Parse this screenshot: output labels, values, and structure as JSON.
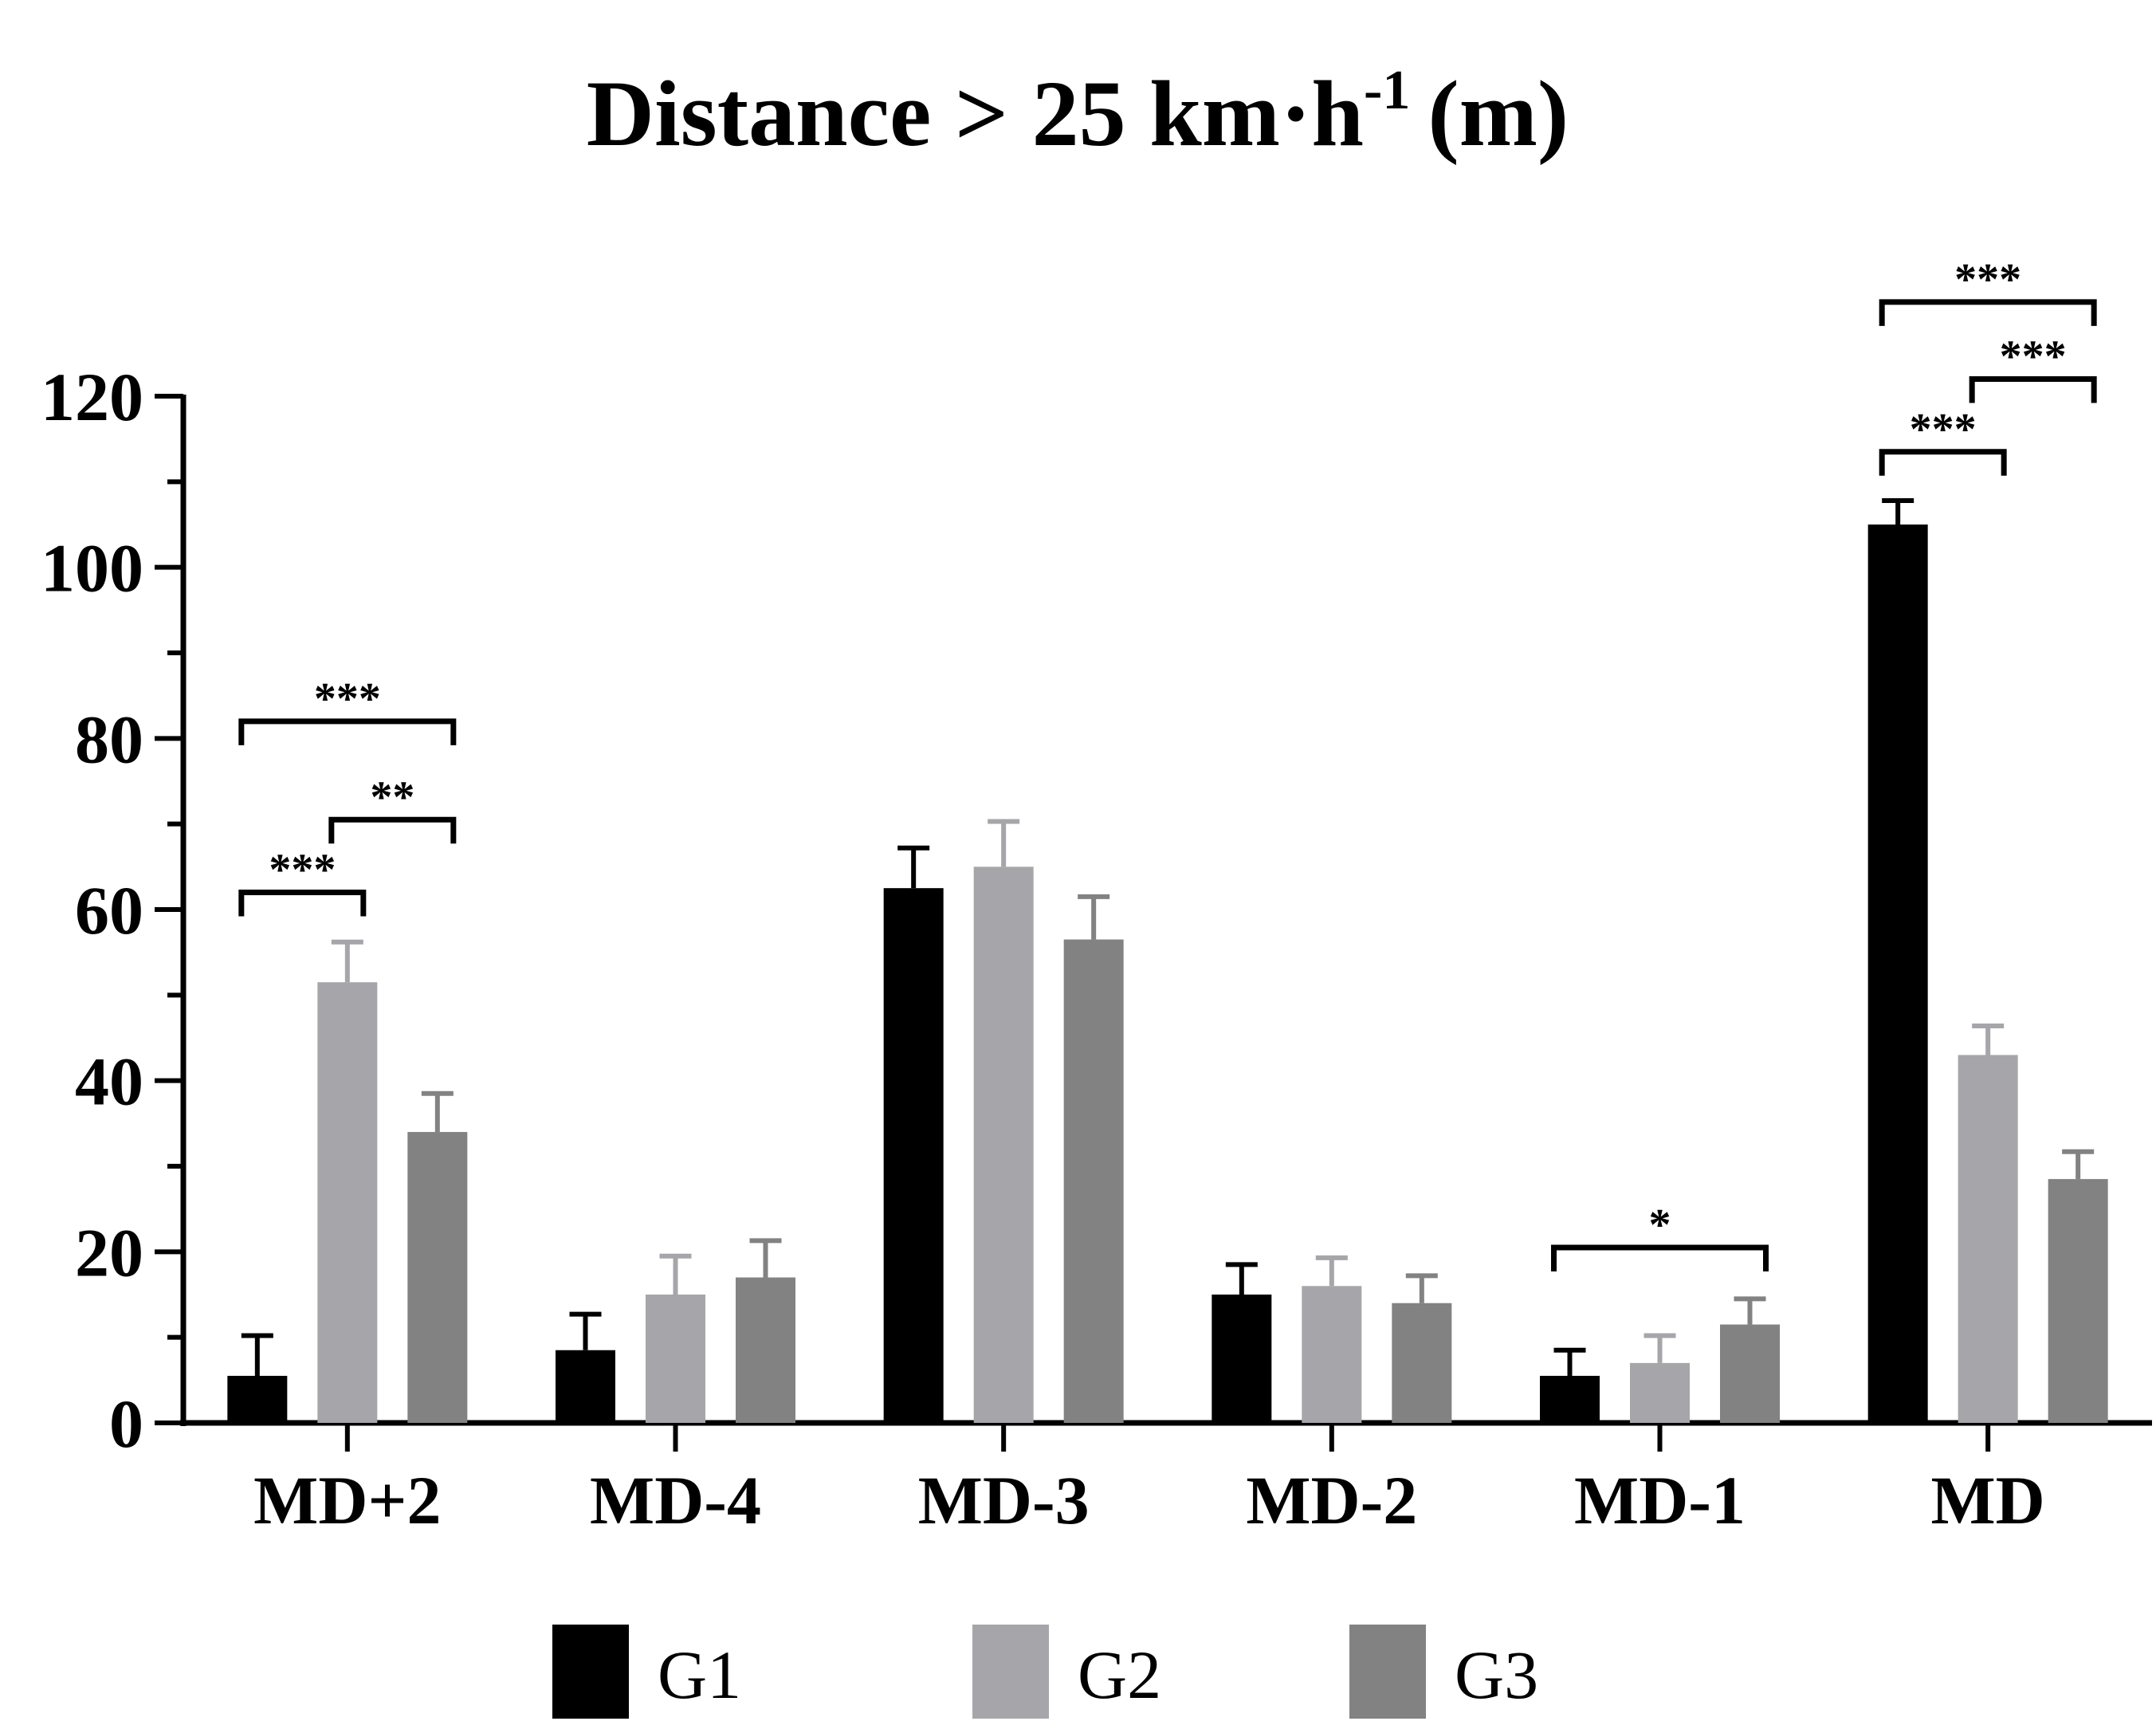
{
  "chart_data": {
    "type": "bar",
    "title": {
      "main": "Distance > 25 km·h",
      "superscript": "-1",
      "unit": "(m)"
    },
    "xlabel": "",
    "ylabel": "",
    "ylim": [
      0,
      120
    ],
    "yticks": [
      "0",
      "20",
      "40",
      "60",
      "80",
      "100",
      "120"
    ],
    "yminor_step": 10,
    "categories": [
      "MD+2",
      "MD-4",
      "MD-3",
      "MD-2",
      "MD-1",
      "MD"
    ],
    "series": [
      {
        "name": "G1",
        "color": "#000000",
        "values": [
          5.5,
          8.5,
          62.5,
          15,
          5.5,
          105
        ],
        "errors": [
          4.7,
          4.2,
          4.7,
          3.5,
          3,
          2.8
        ]
      },
      {
        "name": "G2",
        "color": "#a6a6aa",
        "values": [
          51.5,
          15,
          65,
          16,
          7,
          43
        ],
        "errors": [
          4.7,
          4.5,
          5.3,
          3.3,
          3.2,
          3.4
        ]
      },
      {
        "name": "G3",
        "color": "#828282",
        "values": [
          34,
          17,
          56.5,
          14,
          11.5,
          28.5
        ],
        "errors": [
          4.5,
          4.3,
          5,
          3.2,
          3,
          3.2
        ]
      }
    ],
    "significance": [
      {
        "category": "MD+2",
        "from": "G1",
        "to": "G2",
        "label": "***",
        "y": 62
      },
      {
        "category": "MD+2",
        "from": "G2",
        "to": "G3",
        "label": "**",
        "y": 70.5
      },
      {
        "category": "MD+2",
        "from": "G1",
        "to": "G3",
        "label": "***",
        "y": 82
      },
      {
        "category": "MD-1",
        "from": "G1",
        "to": "G3",
        "label": "*",
        "y": 20.5
      },
      {
        "category": "MD",
        "from": "G1",
        "to": "G2",
        "label": "***",
        "y": 113.5
      },
      {
        "category": "MD",
        "from": "G2",
        "to": "G3",
        "label": "***",
        "y": 122
      },
      {
        "category": "MD",
        "from": "G1",
        "to": "G3",
        "label": "***",
        "y": 131
      }
    ],
    "legend": {
      "position": "bottom-center"
    }
  }
}
